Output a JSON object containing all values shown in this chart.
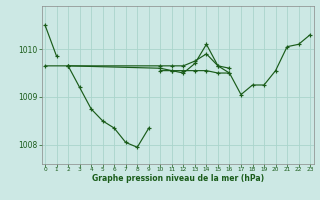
{
  "xlabel": "Graphe pression niveau de la mer (hPa)",
  "background_color": "#cce8e4",
  "grid_color": "#aad4cc",
  "line_color": "#1a5c1a",
  "x_ticks": [
    0,
    1,
    2,
    3,
    4,
    5,
    6,
    7,
    8,
    9,
    10,
    11,
    12,
    13,
    14,
    15,
    16,
    17,
    18,
    19,
    20,
    21,
    22,
    23
  ],
  "ylim": [
    1007.6,
    1010.9
  ],
  "yticks": [
    1008,
    1009,
    1010
  ],
  "series": [
    [
      1010.5,
      1009.85,
      null,
      null,
      null,
      null,
      null,
      null,
      null,
      null,
      null,
      null,
      null,
      null,
      null,
      null,
      null,
      null,
      null,
      null,
      null,
      null,
      null,
      null
    ],
    [
      1009.65,
      null,
      1009.65,
      1009.2,
      1008.75,
      1008.5,
      1008.35,
      1008.05,
      1007.95,
      1008.35,
      null,
      null,
      null,
      null,
      null,
      null,
      null,
      null,
      null,
      null,
      null,
      null,
      null,
      null
    ],
    [
      null,
      null,
      1009.65,
      null,
      null,
      null,
      null,
      null,
      null,
      null,
      1009.6,
      1009.55,
      1009.5,
      1009.7,
      1010.1,
      1009.65,
      1009.6,
      null,
      null,
      null,
      null,
      null,
      null,
      null
    ],
    [
      null,
      null,
      1009.65,
      null,
      null,
      null,
      null,
      null,
      null,
      null,
      1009.65,
      1009.65,
      1009.65,
      1009.75,
      1009.9,
      1009.65,
      1009.5,
      1009.05,
      1009.25,
      1009.25,
      1009.55,
      1010.05,
      1010.1,
      1010.3
    ],
    [
      null,
      null,
      null,
      null,
      null,
      null,
      null,
      null,
      null,
      null,
      1009.55,
      1009.55,
      1009.55,
      1009.55,
      1009.55,
      1009.5,
      1009.5,
      null,
      null,
      null,
      null,
      null,
      null,
      null
    ]
  ]
}
